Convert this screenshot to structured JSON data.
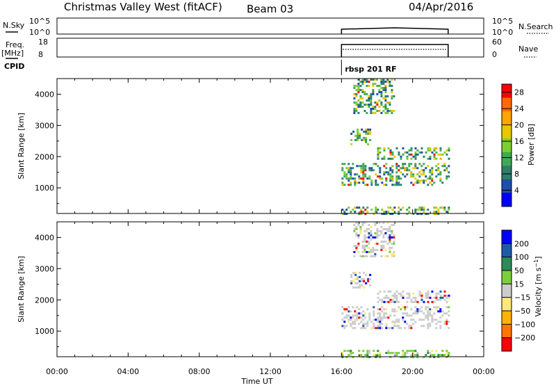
{
  "header": {
    "station": "Christmas Valley West (fitACF)",
    "beam": "Beam 03",
    "date": "04/Apr/2016"
  },
  "strip_labels": {
    "nsky": "N.Sky",
    "freq": "Freq.",
    "freq_unit": "[MHz]",
    "cpid": "CPID",
    "nsearch": "N.Search",
    "nave": "Nave",
    "cpid_value": "rbsp 201 RF"
  },
  "strip_ticks": {
    "nsky_left": [
      "10^5",
      "10^0"
    ],
    "nsky_right": [
      "10^5",
      "10^0"
    ],
    "freq_left": [
      "18",
      "8"
    ],
    "nave_right": [
      "60",
      "0"
    ]
  },
  "colors": {
    "power": [
      "#0000ff",
      "#1c4fa8",
      "#2e7d6b",
      "#3faa55",
      "#7ccd30",
      "#e8c800",
      "#ffa500",
      "#ff6a00",
      "#ff0000"
    ],
    "velocity": [
      "#ff0000",
      "#ff7700",
      "#ffb300",
      "#ffe87a",
      "#cccccc",
      "#7ad03a",
      "#2e8b57",
      "#1e5aa8",
      "#0000ff"
    ]
  },
  "chart_data": [
    {
      "type": "heatmap",
      "name": "Power",
      "xlabel": "",
      "ylabel": "Slant Range [km]",
      "xlim": [
        "00:00",
        "00:00"
      ],
      "ylim": [
        180,
        4500
      ],
      "x_ticks": [
        "00:00",
        "04:00",
        "08:00",
        "12:00",
        "16:00",
        "20:00",
        "00:00"
      ],
      "y_ticks": [
        1000,
        2000,
        3000,
        4000
      ],
      "colorbar": {
        "label": "Power [dB]",
        "range": [
          0,
          30
        ],
        "ticks": [
          "4",
          "8",
          "12",
          "16",
          "20",
          "24",
          "28"
        ]
      },
      "data_extent": {
        "start": "16:00",
        "end": "22:00"
      },
      "regions": [
        {
          "t_start": "16:40",
          "t_end": "19:00",
          "range_km": [
            3400,
            4500
          ],
          "level_db": 12
        },
        {
          "t_start": "16:30",
          "t_end": "17:40",
          "range_km": [
            2400,
            2900
          ],
          "level_db": 11
        },
        {
          "t_start": "18:00",
          "t_end": "22:00",
          "range_km": [
            1900,
            2300
          ],
          "level_db": 12
        },
        {
          "t_start": "16:00",
          "t_end": "22:00",
          "range_km": [
            1100,
            1800
          ],
          "level_db": 13
        },
        {
          "t_start": "16:00",
          "t_end": "22:00",
          "range_km": [
            180,
            400
          ],
          "level_db": 10
        }
      ]
    },
    {
      "type": "heatmap",
      "name": "Velocity",
      "xlabel": "Time UT",
      "ylabel": "Slant Range [km]",
      "xlim": [
        "00:00",
        "00:00"
      ],
      "ylim": [
        180,
        4500
      ],
      "x_ticks": [
        "00:00",
        "04:00",
        "08:00",
        "12:00",
        "16:00",
        "20:00",
        "00:00"
      ],
      "y_ticks": [
        1000,
        2000,
        3000,
        4000
      ],
      "colorbar": {
        "label": "Velocity [m s-1]",
        "range": [
          -250,
          250
        ],
        "ticks": [
          "200",
          "100",
          "50",
          "15",
          "−15",
          "−50",
          "−100",
          "−200"
        ]
      },
      "data_extent": {
        "start": "16:00",
        "end": "22:00"
      },
      "regions": [
        {
          "t_start": "16:40",
          "t_end": "19:00",
          "range_km": [
            3400,
            4500
          ],
          "level_ms": 0
        },
        {
          "t_start": "16:30",
          "t_end": "17:40",
          "range_km": [
            2400,
            2900
          ],
          "level_ms": 0
        },
        {
          "t_start": "18:00",
          "t_end": "22:00",
          "range_km": [
            1900,
            2300
          ],
          "level_ms": 0
        },
        {
          "t_start": "16:00",
          "t_end": "22:00",
          "range_km": [
            1100,
            1800
          ],
          "level_ms": 0
        },
        {
          "t_start": "16:00",
          "t_end": "22:00",
          "range_km": [
            180,
            400
          ],
          "level_ms": 30
        }
      ]
    }
  ]
}
